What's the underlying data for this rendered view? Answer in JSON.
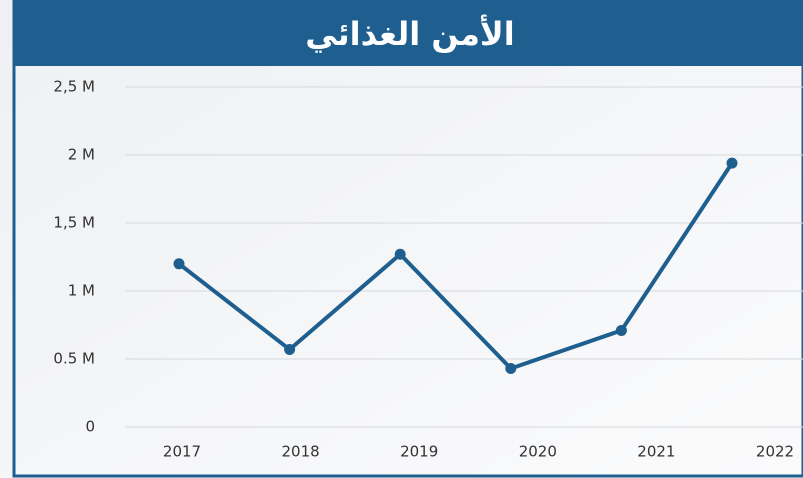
{
  "chart_data": {
    "type": "line",
    "title": "الأمن الغذائي",
    "categories": [
      "2017",
      "2018",
      "2019",
      "2020",
      "2021",
      "2022"
    ],
    "series": [
      {
        "color": "#1f5f8f",
        "values": [
          1200000,
          570000,
          1270000,
          430000,
          710000,
          1940000
        ]
      }
    ],
    "ylim": [
      0,
      2500000
    ],
    "yticks": [
      0,
      {
        "value": 500000,
        "label": "0.5 M"
      },
      {
        "value": 1000000,
        "label": "1 M"
      },
      {
        "value": 1500000,
        "label": "1,5 M"
      },
      {
        "value": 2000000,
        "label": "2 M"
      },
      {
        "value": 2500000,
        "label": "2,5 M"
      }
    ],
    "grid": true
  }
}
